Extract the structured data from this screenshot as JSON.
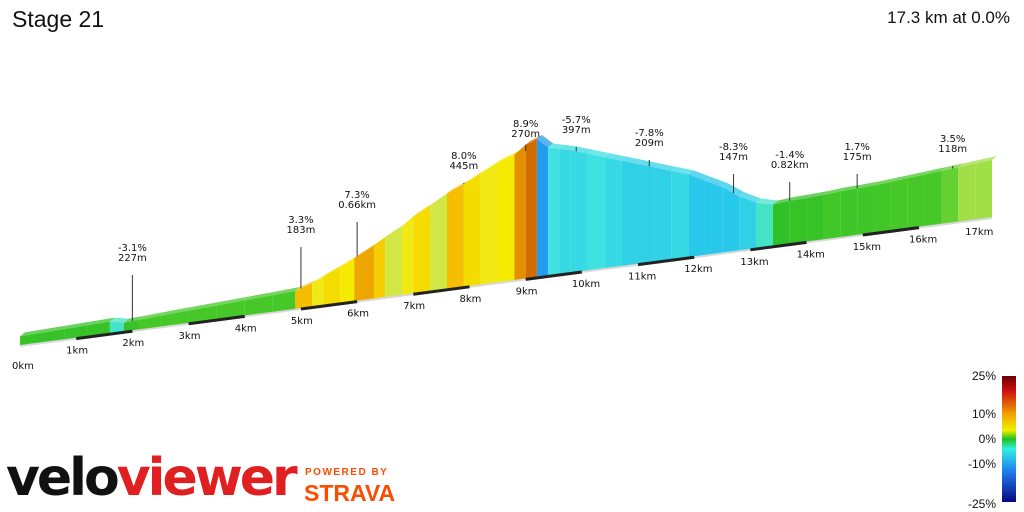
{
  "header": {
    "title": "Stage 21",
    "summary": "17.3 km at 0.0%"
  },
  "branding": {
    "logo_part1": "velo",
    "logo_part2": "viewer",
    "powered_by": "POWERED BY",
    "partner": "STRAVA"
  },
  "chart_data": {
    "type": "area",
    "title": "Stage 21",
    "subtitle": "17.3 km at 0.0%",
    "x_unit": "km",
    "xlim": [
      0,
      17.3
    ],
    "x_ticks": [
      "0km",
      "1km",
      "2km",
      "3km",
      "4km",
      "5km",
      "6km",
      "7km",
      "8km",
      "9km",
      "10km",
      "11km",
      "12km",
      "13km",
      "14km",
      "15km",
      "16km",
      "17km"
    ],
    "profile": {
      "x": [
        0,
        0.4,
        0.8,
        1.2,
        1.6,
        1.85,
        2.1,
        2.5,
        3.0,
        3.5,
        4.0,
        4.5,
        4.9,
        5.2,
        5.4,
        5.7,
        5.95,
        6.3,
        6.5,
        6.8,
        7.0,
        7.3,
        7.6,
        7.9,
        8.2,
        8.5,
        8.8,
        9.0,
        9.2,
        9.4,
        9.6,
        9.8,
        10.1,
        10.4,
        10.7,
        11.0,
        11.3,
        11.6,
        11.9,
        12.2,
        12.5,
        12.8,
        13.1,
        13.4,
        13.7,
        14.0,
        14.3,
        14.6,
        14.9,
        15.2,
        15.5,
        15.8,
        16.1,
        16.4,
        16.7,
        17.0,
        17.3
      ],
      "elevation_rel": [
        4,
        4.5,
        5,
        5.5,
        6,
        4,
        4.5,
        5.5,
        6.5,
        7.5,
        8.5,
        9.5,
        10.5,
        14,
        18,
        23,
        28,
        35,
        40,
        46,
        52,
        58,
        65,
        70,
        76,
        82,
        86,
        92,
        95,
        88,
        86,
        84,
        80,
        76,
        72,
        68,
        64,
        60,
        56,
        50,
        44,
        36,
        30,
        27,
        28,
        28.5,
        29,
        30,
        30.5,
        31,
        32,
        33,
        34,
        35,
        36,
        37,
        38
      ],
      "segment_gradients": [
        1,
        1,
        1,
        1,
        -3.1,
        1,
        2,
        2,
        2,
        2,
        2,
        2,
        12,
        8,
        10,
        9,
        13,
        11,
        5,
        8,
        10,
        5,
        12,
        10,
        8,
        9,
        14,
        16,
        -10,
        -5,
        -6,
        -6,
        -5,
        -6,
        -7,
        -7,
        -7,
        -6,
        -8,
        -8,
        -8,
        -7,
        -3,
        0.5,
        1,
        1,
        1.7,
        1.5,
        1.5,
        1.7,
        2,
        2,
        2,
        2.5,
        3.5,
        3.5
      ]
    },
    "annotations": [
      {
        "x": 2.0,
        "grade": "-3.1%",
        "length": "227m"
      },
      {
        "x": 5.0,
        "grade": "3.3%",
        "length": "183m"
      },
      {
        "x": 6.0,
        "grade": "7.3%",
        "length": "0.66km"
      },
      {
        "x": 7.9,
        "grade": "8.0%",
        "length": "445m"
      },
      {
        "x": 9.0,
        "grade": "8.9%",
        "length": "270m"
      },
      {
        "x": 9.9,
        "grade": "-5.7%",
        "length": "397m"
      },
      {
        "x": 11.2,
        "grade": "-7.8%",
        "length": "209m"
      },
      {
        "x": 12.7,
        "grade": "-8.3%",
        "length": "147m"
      },
      {
        "x": 13.7,
        "grade": "-1.4%",
        "length": "0.82km"
      },
      {
        "x": 14.9,
        "grade": "1.7%",
        "length": "175m"
      },
      {
        "x": 16.6,
        "grade": "3.5%",
        "length": "118m"
      }
    ],
    "gradient_scale": {
      "labels": [
        "25%",
        "10%",
        "0%",
        "-10%",
        "-25%"
      ],
      "values": [
        25,
        10,
        0,
        -10,
        -25
      ]
    },
    "colors": {
      "steep_up": "#c01010",
      "up": "#f0e000",
      "flat": "#20c020",
      "down": "#30e0e0",
      "steep_down": "#1010a0"
    }
  }
}
